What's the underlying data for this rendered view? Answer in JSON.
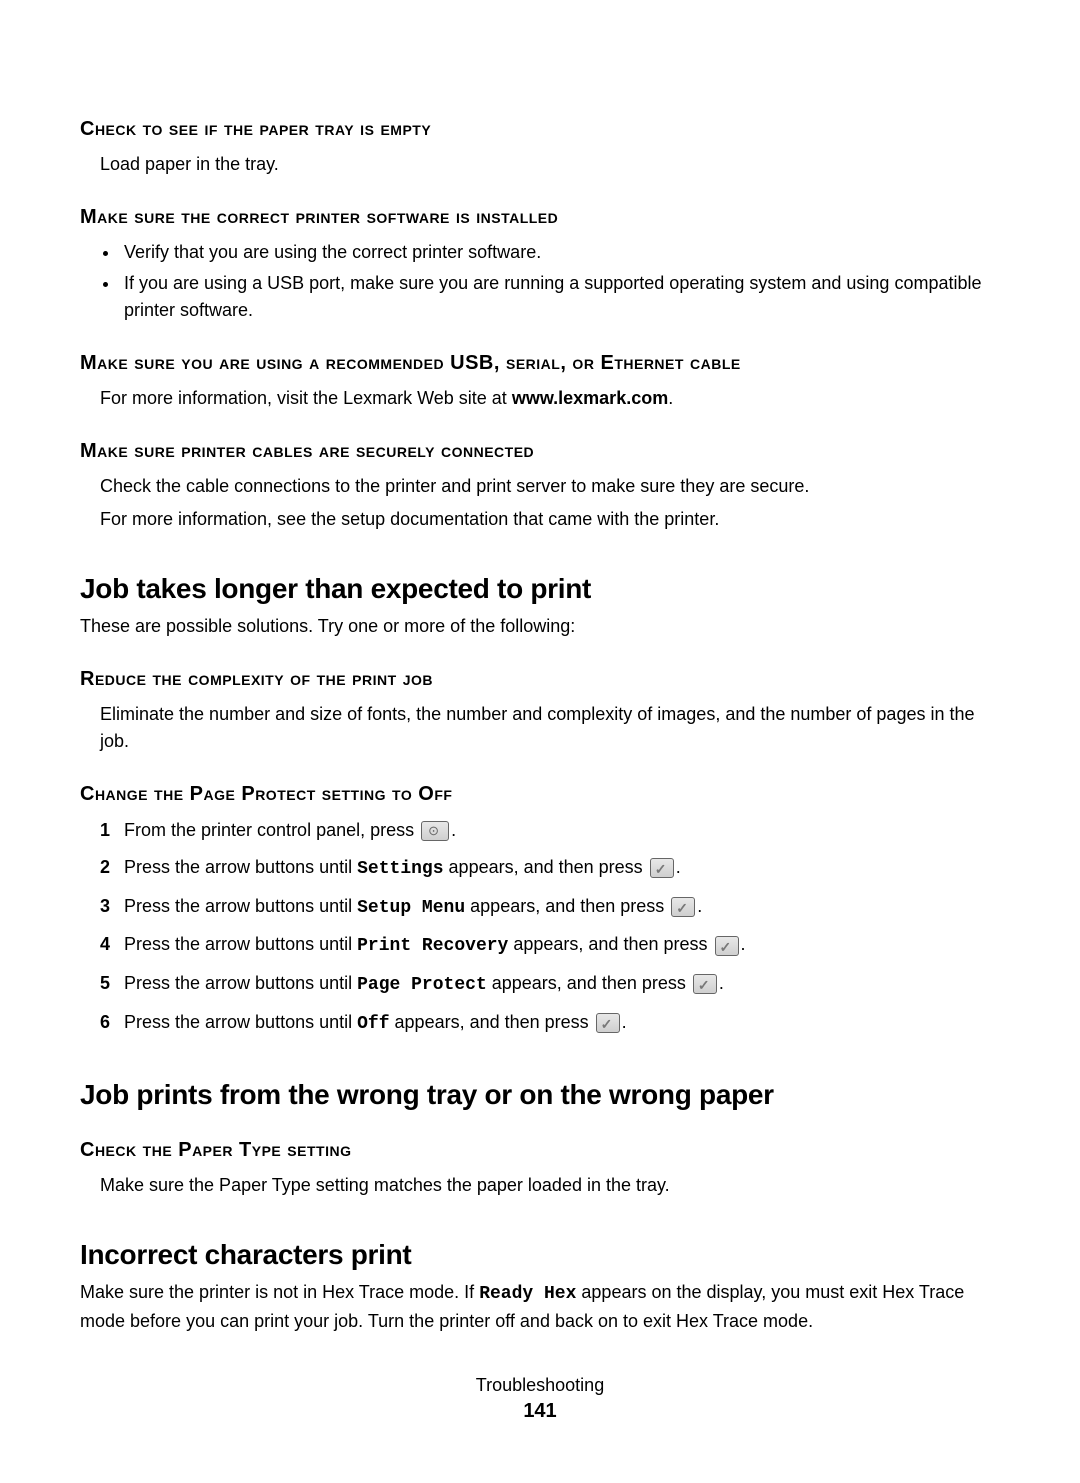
{
  "sec1": {
    "h": "Check to see if the paper tray is empty",
    "p": "Load paper in the tray."
  },
  "sec2": {
    "h": "Make sure the correct printer software is installed",
    "b1": "Verify that you are using the correct printer software.",
    "b2": "If you are using a USB port, make sure you are running a supported operating system and using compatible printer software."
  },
  "sec3": {
    "h": "Make sure you are using a recommended USB, serial, or Ethernet cable",
    "p_pre": "For more information, visit the Lexmark Web site at ",
    "p_bold": "www.lexmark.com",
    "p_post": "."
  },
  "sec4": {
    "h": "Make sure printer cables are securely connected",
    "p1": "Check the cable connections to the printer and print server to make sure they are secure.",
    "p2": "For more information, see the setup documentation that came with the printer."
  },
  "sec5": {
    "h": "Job takes longer than expected to print",
    "p": "These are possible solutions. Try one or more of the following:"
  },
  "sec6": {
    "h": "Reduce the complexity of the print job",
    "p": "Eliminate the number and size of fonts, the number and complexity of images, and the number of pages in the job."
  },
  "sec7": {
    "h": "Change the Page Protect setting to Off",
    "s1_pre": "From the printer control panel, press ",
    "s1_post": ".",
    "s2_pre": "Press the arrow buttons until ",
    "s2_mono": "Settings",
    "s2_mid": " appears, and then press ",
    "s2_post": ".",
    "s3_pre": "Press the arrow buttons until ",
    "s3_mono": "Setup Menu",
    "s3_mid": " appears, and then press ",
    "s3_post": ".",
    "s4_pre": "Press the arrow buttons until ",
    "s4_mono": "Print Recovery",
    "s4_mid": " appears, and then press ",
    "s4_post": ".",
    "s5_pre": "Press the arrow buttons until ",
    "s5_mono": "Page Protect",
    "s5_mid": " appears, and then press ",
    "s5_post": ".",
    "s6_pre": "Press the arrow buttons until ",
    "s6_mono": "Off",
    "s6_mid": " appears, and then press ",
    "s6_post": "."
  },
  "sec8": {
    "h": "Job prints from the wrong tray or on the wrong paper"
  },
  "sec9": {
    "h": "Check the Paper Type setting",
    "p": "Make sure the Paper Type setting matches the paper loaded in the tray."
  },
  "sec10": {
    "h": "Incorrect characters print",
    "p_pre": "Make sure the printer is not in Hex Trace mode. If ",
    "p_mono": "Ready Hex",
    "p_post": " appears on the display, you must exit Hex Trace mode before you can print your job. Turn the printer off and back on to exit Hex Trace mode."
  },
  "footer": {
    "title": "Troubleshooting",
    "page": "141"
  }
}
